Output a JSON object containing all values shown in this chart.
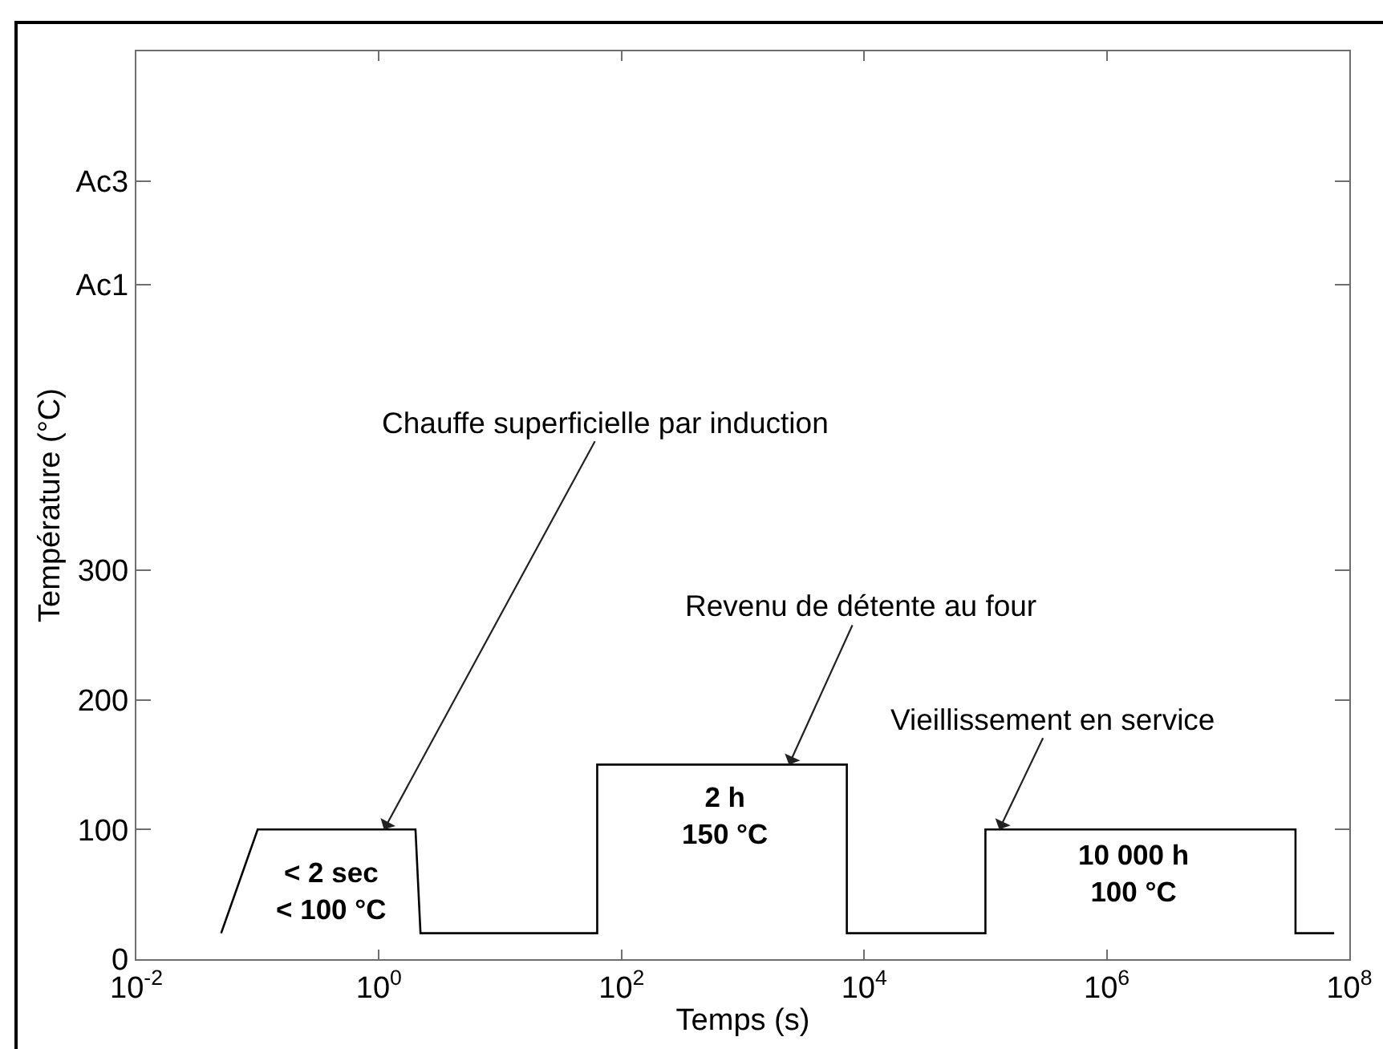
{
  "chart_data": {
    "type": "line",
    "xlabel": "Temps (s)",
    "ylabel": "Température (°C)",
    "x": [
      0.05,
      0.1,
      2,
      2.2,
      63,
      63,
      7200,
      7200,
      100000,
      100000,
      36000000,
      36000000,
      75000000
    ],
    "series": [
      {
        "color": "#000000",
        "values": [
          20,
          100,
          100,
          20,
          20,
          150,
          150,
          20,
          20,
          100,
          100,
          20,
          20
        ]
      }
    ],
    "log": "x",
    "xlim": [
      0.01,
      100000000
    ],
    "xticks": [
      {
        "value": 0.01,
        "label": "10$^{-2}$"
      },
      {
        "value": 1,
        "label": "10$^{0}$"
      },
      {
        "value": 100,
        "label": "10$^{2}$"
      },
      {
        "value": 10000,
        "label": "10$^{4}$"
      },
      {
        "value": 1000000,
        "label": "10$^{6}$"
      },
      {
        "value": 100000000,
        "label": "10$^{8}$"
      }
    ],
    "ylim": [
      0,
      700
    ],
    "yticks": [
      0,
      100,
      200,
      300,
      {
        "value": 520,
        "label": "Ac1"
      },
      {
        "value": 600,
        "label": "Ac3"
      }
    ],
    "marker": "none",
    "line_style": "solid",
    "annotations": [
      {
        "text": "Chauffe superficielle par induction",
        "x": 1.1,
        "y": 100
      },
      {
        "text": "Revenu de détente au four",
        "x": 2400,
        "y": 150
      },
      {
        "text": "Vieillissement en service",
        "x": 130000,
        "y": 100
      },
      {
        "text": "< 2 sec\n< 100 °C",
        "x": 0.41,
        "y": 100
      },
      {
        "text": "2 h\n150 °C",
        "x": 716,
        "y": 150
      },
      {
        "text": "10 000 h\n100 °C",
        "x": 1660000,
        "y": 100
      }
    ]
  }
}
